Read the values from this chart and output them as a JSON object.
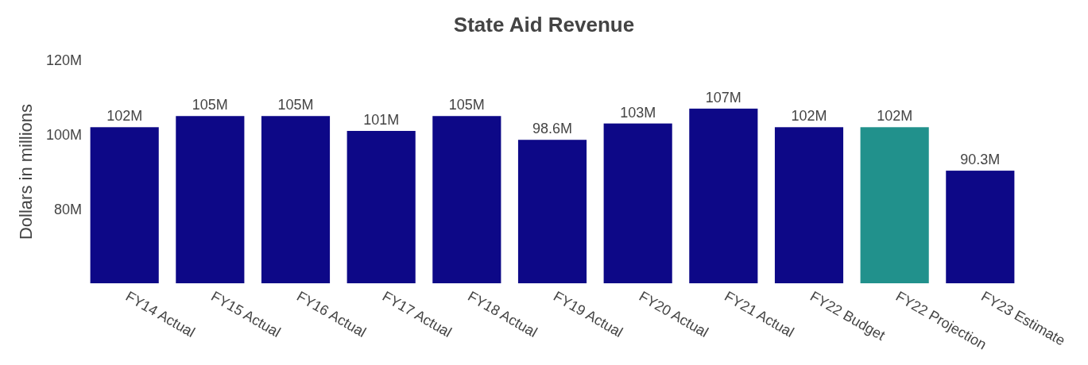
{
  "chart_data": {
    "type": "bar",
    "title": "State Aid Revenue",
    "ylabel": "Dollars in millions",
    "categories": [
      "FY14 Actual",
      "FY15 Actual",
      "FY16 Actual",
      "FY17 Actual",
      "FY18 Actual",
      "FY19 Actual",
      "FY20 Actual",
      "FY21 Actual",
      "FY22 Budget",
      "FY22 Projection",
      "FY23 Estimate"
    ],
    "values": [
      102,
      105,
      105,
      101,
      105,
      98.6,
      103,
      107,
      102,
      102,
      90.3
    ],
    "value_labels": [
      "102M",
      "105M",
      "105M",
      "101M",
      "105M",
      "98.6M",
      "103M",
      "107M",
      "102M",
      "102M",
      "90.3M"
    ],
    "colors": [
      "#0d0887",
      "#0d0887",
      "#0d0887",
      "#0d0887",
      "#0d0887",
      "#0d0887",
      "#0d0887",
      "#0d0887",
      "#0d0887",
      "#21918c",
      "#0d0887"
    ],
    "ylim": [
      60,
      120
    ],
    "yticks": [
      {
        "value": 80,
        "label": "80M"
      },
      {
        "value": 100,
        "label": "100M"
      },
      {
        "value": 120,
        "label": "120M"
      }
    ],
    "grid": false
  }
}
